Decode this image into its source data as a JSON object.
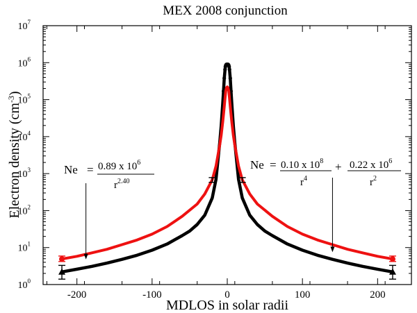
{
  "chart_data": {
    "type": "line",
    "title": "MEX 2008 conjunction",
    "xlabel": "MDLOS in solar radii",
    "ylabel": "Electron density (cm",
    "ylabel_exp": "-3",
    "ylabel_close": ")",
    "xlim": [
      -245,
      245
    ],
    "ylim": [
      1,
      10000000
    ],
    "yscale": "log",
    "grid": false,
    "x_ticks": [
      -200,
      -100,
      0,
      100,
      200
    ],
    "x_tick_labels": [
      "-200",
      "-100",
      "0",
      "100",
      "200"
    ],
    "y_ticks": [
      1,
      10,
      100,
      1000,
      10000,
      100000,
      1000000,
      10000000
    ],
    "y_tick_base": "10",
    "y_tick_exps": [
      "0",
      "1",
      "2",
      "3",
      "4",
      "5",
      "6",
      "7"
    ],
    "series": [
      {
        "color": "#000000",
        "marker": "triangle",
        "x": [
          -220,
          -200,
          -180,
          -160,
          -140,
          -120,
          -100,
          -80,
          -60,
          -50,
          -40,
          -30,
          -20,
          -15,
          -10,
          -8,
          -6,
          -5,
          -4,
          -3,
          -2.5,
          -2,
          -1.5,
          -1.2,
          -1,
          0,
          1,
          1.2,
          1.5,
          2,
          2.5,
          3,
          4,
          5,
          6,
          8,
          10,
          15,
          20,
          30,
          40,
          50,
          60,
          80,
          100,
          120,
          140,
          160,
          180,
          200,
          220
        ],
        "y": [
          2.2,
          2.6,
          3.1,
          3.8,
          4.8,
          6.2,
          8.5,
          12.5,
          21,
          28,
          42,
          75,
          220,
          700,
          7000,
          20000,
          80000,
          170000,
          380000,
          650000,
          780000,
          850000,
          880000,
          890000,
          900000,
          900000,
          900000,
          890000,
          880000,
          850000,
          780000,
          650000,
          380000,
          170000,
          80000,
          20000,
          7000,
          700,
          220,
          75,
          42,
          28,
          21,
          12.5,
          8.5,
          6.2,
          4.8,
          3.8,
          3.1,
          2.6,
          2.2
        ]
      },
      {
        "color": "#ee1111",
        "marker": "circle",
        "x": [
          -220,
          -200,
          -180,
          -160,
          -140,
          -120,
          -100,
          -80,
          -60,
          -40,
          -30,
          -20,
          -15,
          -10,
          -8,
          -6,
          -5,
          -4,
          -3,
          -2,
          -1,
          0,
          1,
          2,
          3,
          4,
          5,
          6,
          8,
          10,
          15,
          20,
          30,
          40,
          60,
          80,
          100,
          120,
          140,
          160,
          180,
          200,
          220
        ],
        "y": [
          4.9,
          5.8,
          7.2,
          9,
          12,
          16,
          23,
          37,
          70,
          150,
          280,
          680,
          1600,
          6000,
          11000,
          25000,
          40000,
          65000,
          110000,
          170000,
          210000,
          220000,
          210000,
          170000,
          110000,
          65000,
          40000,
          25000,
          11000,
          6000,
          1600,
          680,
          280,
          150,
          70,
          37,
          23,
          16,
          12,
          9,
          7.2,
          5.8,
          4.9
        ]
      }
    ],
    "error_bars": [
      {
        "x": -220,
        "lo": 1.4,
        "hi": 3.3,
        "color": "#000000"
      },
      {
        "x": 220,
        "lo": 1.4,
        "hi": 3.3,
        "color": "#000000"
      },
      {
        "x": -220,
        "lo": 4.2,
        "hi": 5.9,
        "color": "#ee1111"
      },
      {
        "x": 220,
        "lo": 4.2,
        "hi": 5.9,
        "color": "#ee1111"
      },
      {
        "x": -20,
        "lo": 580,
        "hi": 780,
        "color": "#000000"
      },
      {
        "x": 20,
        "lo": 580,
        "hi": 780,
        "color": "#000000"
      }
    ],
    "annotations": {
      "left": {
        "lhs": "Ne",
        "eq": "=",
        "num_coef": "0.89 x 10",
        "num_exp": "6",
        "den_base": "r",
        "den_exp": "2.40",
        "arrow_x": -188,
        "arrow_y": 4.8
      },
      "right": {
        "lhs": "Ne",
        "eq": "=",
        "t1_num_coef": "0.10 x 10",
        "t1_num_exp": "8",
        "t1_den_base": "r",
        "t1_den_exp": "4",
        "plus": "+",
        "t2_num_coef": "0.22 x 10",
        "t2_num_exp": "6",
        "t2_den_base": "r",
        "t2_den_exp": "2",
        "arrow_x": 140,
        "arrow_y": 7.5
      }
    }
  }
}
